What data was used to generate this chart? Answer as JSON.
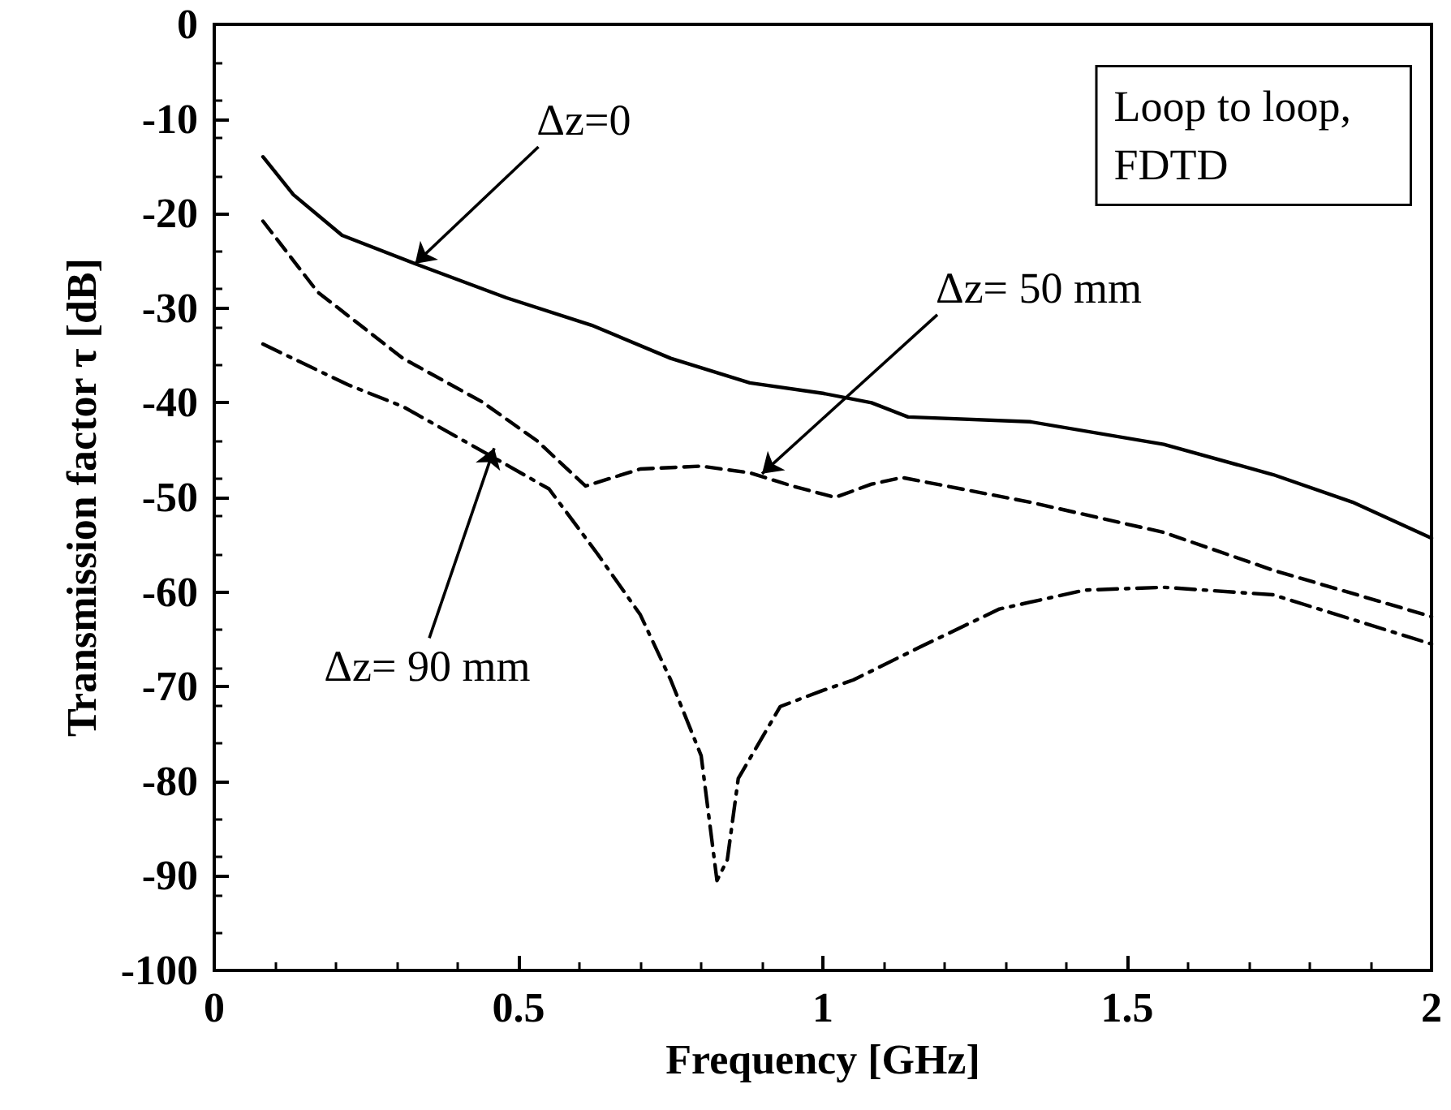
{
  "chart_data": {
    "type": "line",
    "xlabel": "Frequency [GHz]",
    "ylabel": "Transmission factor τ [dB]",
    "xlim": [
      0,
      2
    ],
    "xticks": [
      0,
      0.5,
      1,
      1.5,
      2
    ],
    "ylim": [
      -100,
      0
    ],
    "yticks": [
      0,
      -10,
      -20,
      -30,
      -40,
      -50,
      -60,
      -70,
      -80,
      -90,
      -100
    ],
    "grid": false,
    "marker": "none",
    "series": [
      {
        "color": "#000000",
        "line_style": "solid",
        "x": [
          0.08,
          0.13,
          0.21,
          0.33,
          0.48,
          0.62,
          0.75,
          0.88,
          1.0,
          1.08,
          1.14,
          1.34,
          1.56,
          1.74,
          1.87,
          2.0
        ],
        "values": [
          -14,
          -18,
          -22.3,
          -25.3,
          -28.9,
          -31.8,
          -35.3,
          -37.9,
          -39,
          -40,
          -41.5,
          -42,
          -44.4,
          -47.6,
          -50.5,
          -54.3
        ]
      },
      {
        "color": "#000000",
        "line_style": "dashed",
        "x": [
          0.08,
          0.17,
          0.31,
          0.44,
          0.53,
          0.61,
          0.7,
          0.8,
          0.88,
          0.95,
          1.02,
          1.08,
          1.13,
          1.34,
          1.56,
          1.74,
          2.0
        ],
        "values": [
          -20.8,
          -28.3,
          -35.3,
          -39.9,
          -44,
          -48.8,
          -47,
          -46.7,
          -47.4,
          -48.8,
          -50,
          -48.6,
          -47.9,
          -50.5,
          -53.7,
          -57.7,
          -62.6
        ]
      },
      {
        "color": "#000000",
        "line_style": "dashdot",
        "x": [
          0.08,
          0.22,
          0.31,
          0.44,
          0.55,
          0.63,
          0.7,
          0.75,
          0.8,
          0.826,
          0.843,
          0.861,
          0.93,
          1.0,
          1.05,
          1.16,
          1.29,
          1.43,
          1.56,
          1.74,
          1.87,
          2.0
        ],
        "values": [
          -33.8,
          -38.1,
          -40.4,
          -45.1,
          -49.1,
          -56,
          -62.4,
          -69.3,
          -77.3,
          -90.5,
          -88.3,
          -79.7,
          -72.1,
          -70.4,
          -69.3,
          -65.8,
          -61.8,
          -59.8,
          -59.5,
          -60.3,
          -62.9,
          -65.5
        ]
      }
    ],
    "annotations": [
      {
        "text": "Δz=0",
        "x": 0.33,
        "y": -25.3
      },
      {
        "text": "Δz= 50 mm",
        "x": 0.9,
        "y": -47.5
      },
      {
        "text": "Δz= 90 mm",
        "x": 0.46,
        "y": -44.8
      },
      "Loop to loop,\nFDTD"
    ]
  }
}
